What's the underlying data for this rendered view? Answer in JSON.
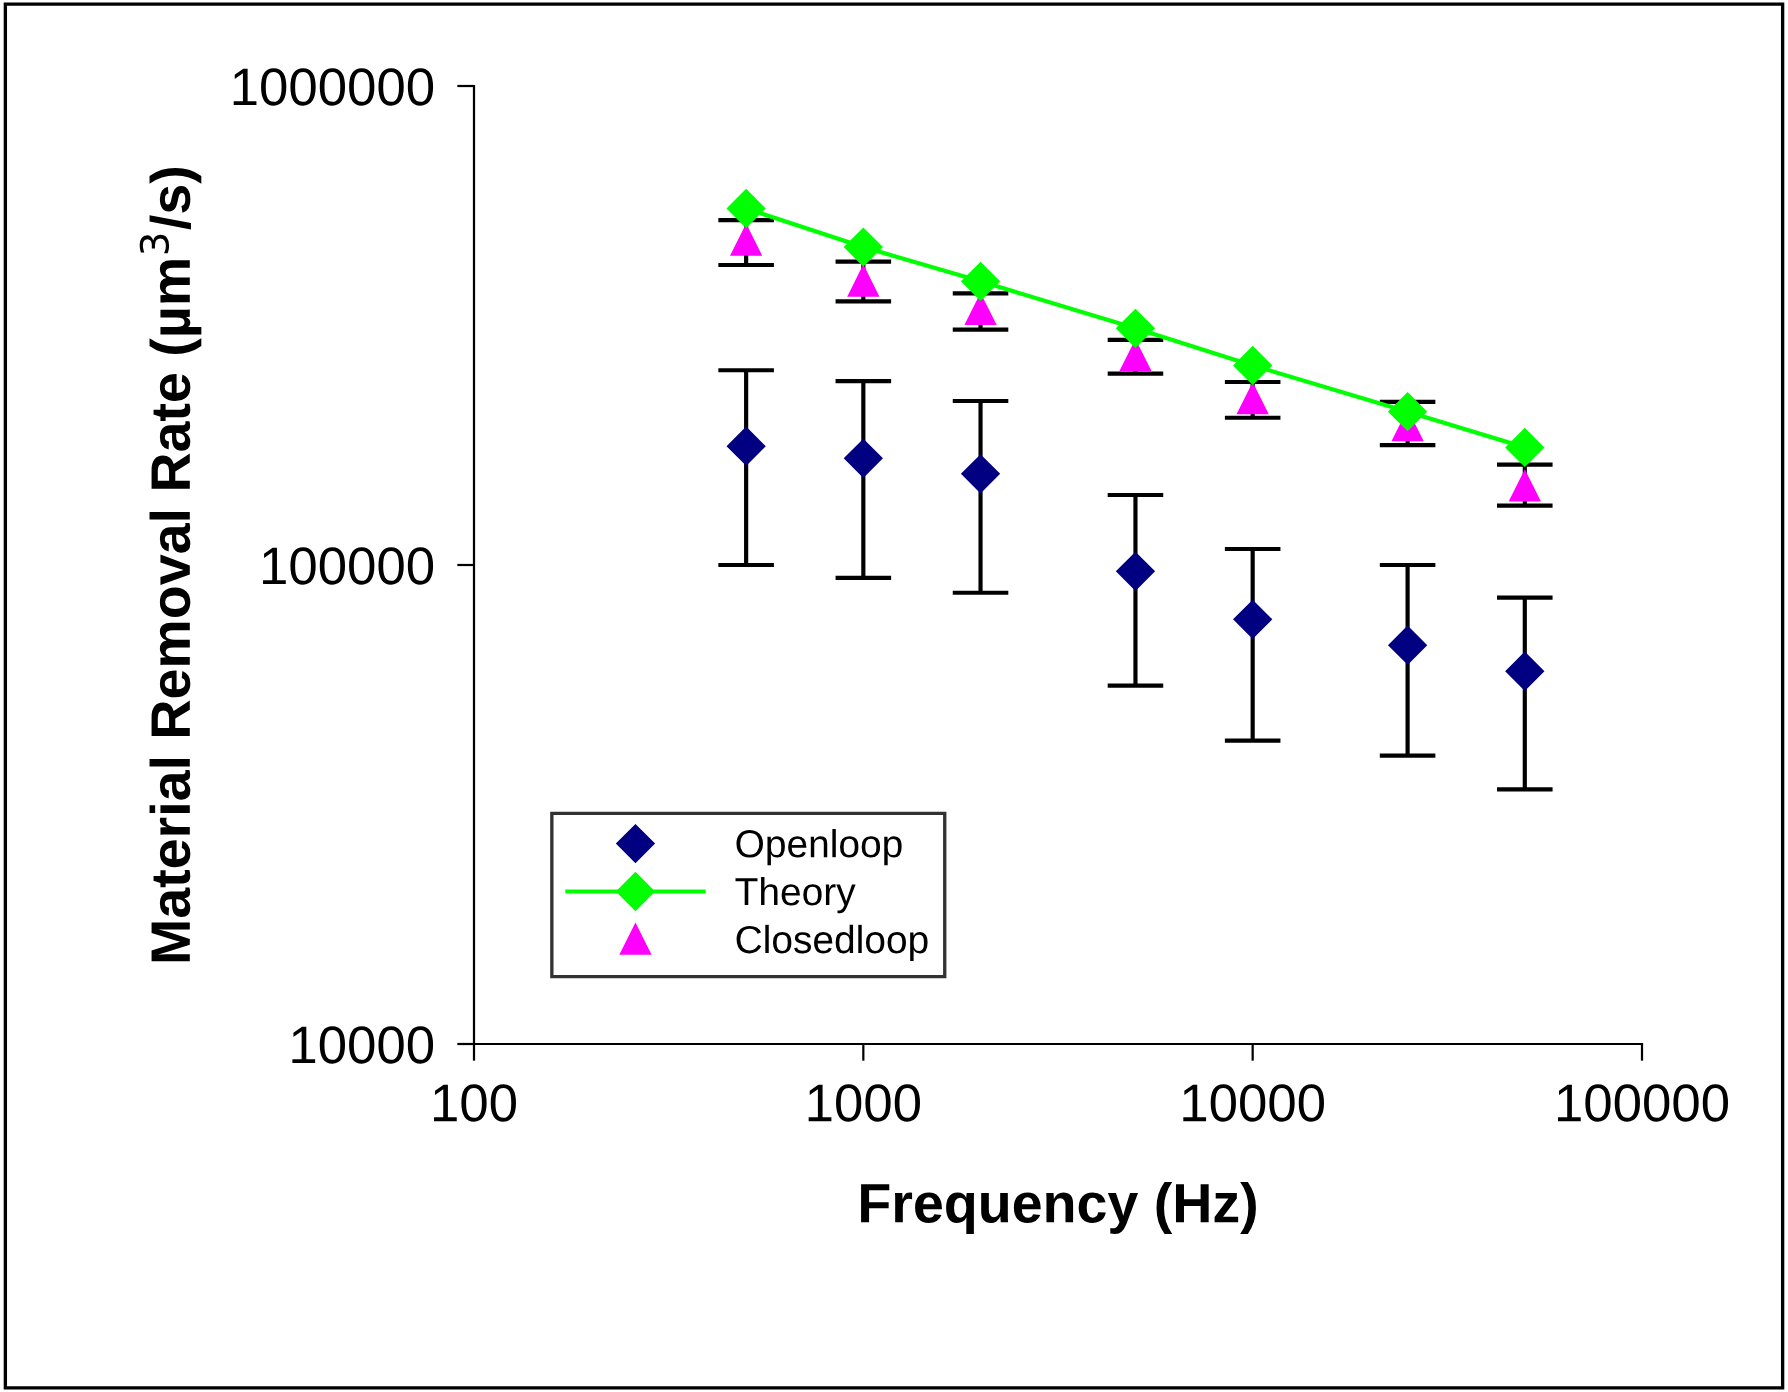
{
  "chart_data": {
    "type": "scatter",
    "xlabel": "Frequency (Hz)",
    "ylabel": "Material Removal Rate (µm$^{3}$/s)",
    "log": "xy",
    "xlim": [
      100,
      100000
    ],
    "ylim": [
      10000,
      1000000
    ],
    "xticks": [
      100,
      1000,
      10000,
      100000
    ],
    "yticks": [
      10000,
      100000,
      1000000
    ],
    "grid": false,
    "legend": "bottom left",
    "x": [
      500,
      1000,
      2000,
      5000,
      10000,
      25000,
      50000
    ],
    "series": [
      {
        "name": "Openloop",
        "color": "#000080",
        "marker": "diamond",
        "values": [
          177000,
          167000,
          155000,
          97000,
          77000,
          68000,
          60000
        ],
        "errors": [
          [
            100000,
            255000
          ],
          [
            94000,
            242000
          ],
          [
            87500,
            220000
          ],
          [
            56000,
            140000
          ],
          [
            43000,
            108000
          ],
          [
            40000,
            100000
          ],
          [
            34000,
            85500
          ]
        ]
      },
      {
        "name": "Theory",
        "type": "line",
        "color": "#00ff00",
        "marker": "diamond",
        "values": [
          555000,
          461000,
          391000,
          312000,
          261000,
          209000,
          176000
        ]
      },
      {
        "name": "Closedloop",
        "color": "#ff00ff",
        "marker": "triangle",
        "values": [
          476000,
          391000,
          341000,
          273000,
          222000,
          195000,
          146000
        ],
        "errors": [
          [
            423000,
            525000
          ],
          [
            355000,
            430000
          ],
          [
            310000,
            369000
          ],
          [
            251000,
            295000
          ],
          [
            203000,
            241000
          ],
          [
            178000,
            219000
          ],
          [
            133000,
            162000
          ]
        ]
      }
    ]
  }
}
